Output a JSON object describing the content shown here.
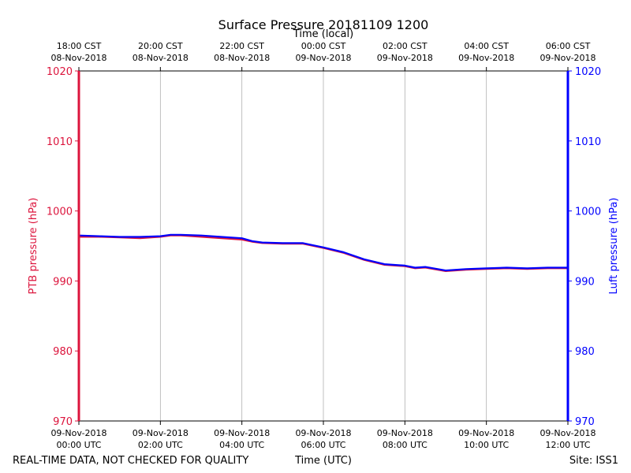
{
  "chart_data": {
    "type": "line",
    "title": "Surface Pressure 20181109 1200",
    "top_axis_label": "Time (local)",
    "xlabel": "Time (UTC)",
    "ylabel_left": "PTB pressure (hPa)",
    "ylabel_right": "Luft pressure (hPa)",
    "ylim": [
      970,
      1020
    ],
    "y_ticks": [
      "970",
      "980",
      "990",
      "1000",
      "1010",
      "1020"
    ],
    "x_range_hours": [
      0,
      12
    ],
    "x_grid": true,
    "bottom_ticks": [
      {
        "hour": 0,
        "line1": "09-Nov-2018",
        "line2": "00:00 UTC"
      },
      {
        "hour": 2,
        "line1": "09-Nov-2018",
        "line2": "02:00 UTC"
      },
      {
        "hour": 4,
        "line1": "09-Nov-2018",
        "line2": "04:00 UTC"
      },
      {
        "hour": 6,
        "line1": "09-Nov-2018",
        "line2": "06:00 UTC"
      },
      {
        "hour": 8,
        "line1": "09-Nov-2018",
        "line2": "08:00 UTC"
      },
      {
        "hour": 10,
        "line1": "09-Nov-2018",
        "line2": "10:00 UTC"
      },
      {
        "hour": 12,
        "line1": "09-Nov-2018",
        "line2": "12:00 UTC"
      }
    ],
    "top_ticks": [
      {
        "hour": 0,
        "line1": "18:00 CST",
        "line2": "08-Nov-2018"
      },
      {
        "hour": 2,
        "line1": "20:00 CST",
        "line2": "08-Nov-2018"
      },
      {
        "hour": 4,
        "line1": "22:00 CST",
        "line2": "08-Nov-2018"
      },
      {
        "hour": 6,
        "line1": "00:00 CST",
        "line2": "09-Nov-2018"
      },
      {
        "hour": 8,
        "line1": "02:00 CST",
        "line2": "09-Nov-2018"
      },
      {
        "hour": 10,
        "line1": "04:00 CST",
        "line2": "09-Nov-2018"
      },
      {
        "hour": 12,
        "line1": "06:00 CST",
        "line2": "09-Nov-2018"
      }
    ],
    "series": [
      {
        "name": "PTB pressure",
        "axis": "left",
        "color": "#dc143c",
        "x": [
          0,
          0.5,
          1,
          1.5,
          2,
          2.25,
          2.5,
          3,
          3.5,
          4,
          4.25,
          4.5,
          5,
          5.5,
          6,
          6.5,
          7,
          7.5,
          8,
          8.25,
          8.5,
          9,
          9.5,
          10,
          10.5,
          11,
          11.5,
          12
        ],
        "values": [
          996.3,
          996.3,
          996.2,
          996.1,
          996.3,
          996.5,
          996.5,
          996.3,
          996.1,
          995.9,
          995.6,
          995.4,
          995.3,
          995.3,
          994.7,
          994.0,
          993.0,
          992.3,
          992.1,
          991.8,
          991.9,
          991.4,
          991.6,
          991.7,
          991.8,
          991.7,
          991.8,
          991.8
        ]
      },
      {
        "name": "Luft pressure",
        "axis": "right",
        "color": "#0000ff",
        "x": [
          0,
          0.5,
          1,
          1.5,
          2,
          2.25,
          2.5,
          3,
          3.5,
          4,
          4.25,
          4.5,
          5,
          5.5,
          6,
          6.5,
          7,
          7.5,
          8,
          8.25,
          8.5,
          9,
          9.5,
          10,
          10.5,
          11,
          11.5,
          12
        ],
        "values": [
          996.5,
          996.4,
          996.3,
          996.3,
          996.4,
          996.6,
          996.6,
          996.5,
          996.3,
          996.1,
          995.7,
          995.5,
          995.4,
          995.4,
          994.8,
          994.1,
          993.1,
          992.4,
          992.2,
          991.9,
          992.0,
          991.5,
          991.7,
          991.8,
          991.9,
          991.8,
          991.9,
          991.9
        ]
      }
    ]
  },
  "footer": {
    "left_note": "REAL-TIME DATA, NOT CHECKED FOR QUALITY",
    "center_label": "Time (UTC)",
    "site": "Site: ISS1"
  }
}
